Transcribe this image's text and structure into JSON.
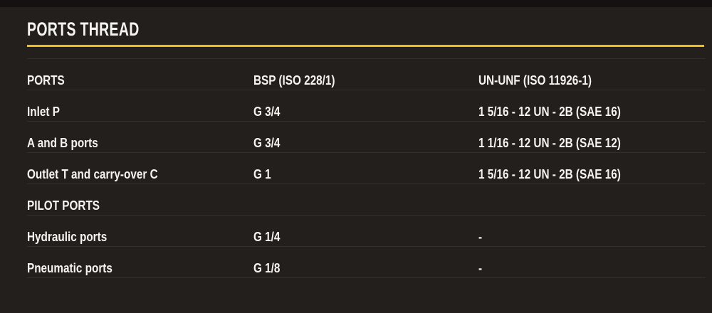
{
  "section": {
    "title": "PORTS THREAD"
  },
  "table": {
    "header": {
      "col1": "PORTS",
      "col2": "BSP (ISO 228/1)",
      "col3": "UN-UNF (ISO 11926-1)"
    },
    "rows": [
      {
        "name": "Inlet P",
        "bsp": "G 3/4",
        "un_unf": "1 5/16 - 12 UN - 2B (SAE 16)"
      },
      {
        "name": "A and B ports",
        "bsp": "G 3/4",
        "un_unf": "1 1/16 - 12 UN - 2B (SAE 12)"
      },
      {
        "name": "Outlet T and carry-over C",
        "bsp": "G 1",
        "un_unf": "1 5/16 - 12 UN - 2B (SAE 16)"
      },
      {
        "name": "PILOT PORTS",
        "bsp": "",
        "un_unf": ""
      },
      {
        "name": "Hydraulic ports",
        "bsp": "G 1/4",
        "un_unf": "-"
      },
      {
        "name": "Pneumatic ports",
        "bsp": "G 1/8",
        "un_unf": "-"
      }
    ]
  },
  "colors": {
    "background": "#231f1c",
    "top_bar": "#141110",
    "accent": "#eebc20",
    "text": "#f6f4f1",
    "separator": "#353029"
  }
}
